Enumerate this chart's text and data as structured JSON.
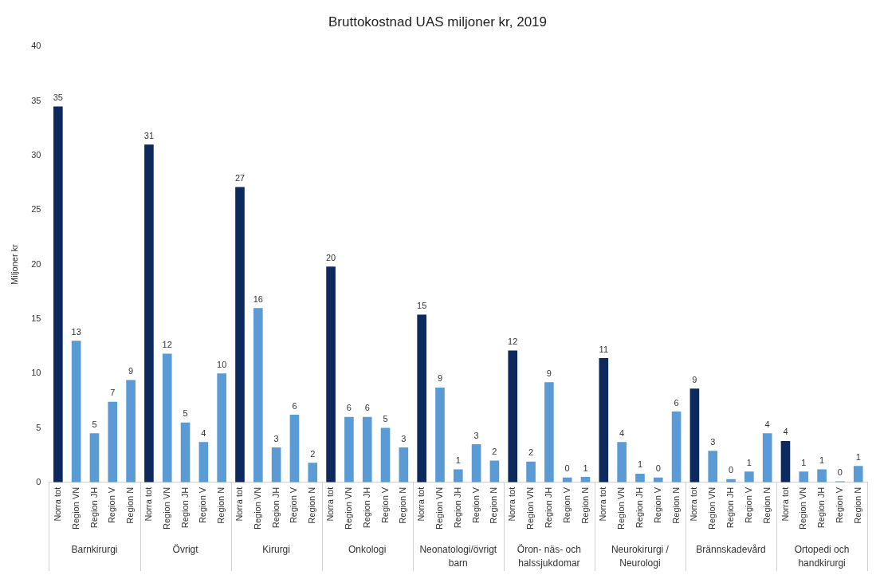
{
  "chart_data": {
    "type": "bar",
    "title": "Bruttokostnad UAS miljoner kr, 2019",
    "ylabel": "Miljoner kr",
    "categories": [
      "Norra tot",
      "Region VN",
      "Region JH",
      "Region V",
      "Region N",
      "Norra tot",
      "Region VN",
      "Region JH",
      "Region V",
      "Region N",
      "Norra tot",
      "Region VN",
      "Region JH",
      "Region V",
      "Region N",
      "Norra tot",
      "Region VN",
      "Region JH",
      "Region V",
      "Region N",
      "Norra tot",
      "Region VN",
      "Region JH",
      "Region V",
      "Region N",
      "Norra tot",
      "Region VN",
      "Region JH",
      "Region V",
      "Region N",
      "Norra tot",
      "Region VN",
      "Region JH",
      "Region V",
      "Region N",
      "Norra tot",
      "Region VN",
      "Region JH",
      "Region V",
      "Region N",
      "Norra tot",
      "Region VN",
      "Region JH",
      "Region V",
      "Region N"
    ],
    "values": [
      34.5,
      13.0,
      4.5,
      7.4,
      9.4,
      31.0,
      11.8,
      5.5,
      3.7,
      10.0,
      27.1,
      16.0,
      3.2,
      6.2,
      1.8,
      19.8,
      6.0,
      6.0,
      5.0,
      3.2,
      15.4,
      8.7,
      1.2,
      3.5,
      2.0,
      12.1,
      1.9,
      9.2,
      0.45,
      0.5,
      11.4,
      3.7,
      0.8,
      0.45,
      6.5,
      8.6,
      2.9,
      0.3,
      1.0,
      4.5,
      3.8,
      1.0,
      1.2,
      0.1,
      1.5
    ],
    "value_labels": [
      "35",
      "13",
      "5",
      "7",
      "9",
      "31",
      "12",
      "5",
      "4",
      "10",
      "27",
      "16",
      "3",
      "6",
      "2",
      "20",
      "6",
      "6",
      "5",
      "3",
      "15",
      "9",
      "1",
      "3",
      "2",
      "12",
      "2",
      "9",
      "0",
      "1",
      "11",
      "4",
      "1",
      "0",
      "6",
      "9",
      "3",
      "0",
      "1",
      "4",
      "4",
      "1",
      "1",
      "0",
      "1"
    ],
    "colors": [
      "#0d2a5e",
      "#5b9bd5",
      "#5b9bd5",
      "#5b9bd5",
      "#5b9bd5",
      "#0d2a5e",
      "#5b9bd5",
      "#5b9bd5",
      "#5b9bd5",
      "#5b9bd5",
      "#0d2a5e",
      "#5b9bd5",
      "#5b9bd5",
      "#5b9bd5",
      "#5b9bd5",
      "#0d2a5e",
      "#5b9bd5",
      "#5b9bd5",
      "#5b9bd5",
      "#5b9bd5",
      "#0d2a5e",
      "#5b9bd5",
      "#5b9bd5",
      "#5b9bd5",
      "#5b9bd5",
      "#0d2a5e",
      "#5b9bd5",
      "#5b9bd5",
      "#5b9bd5",
      "#5b9bd5",
      "#0d2a5e",
      "#5b9bd5",
      "#5b9bd5",
      "#5b9bd5",
      "#5b9bd5",
      "#0d2a5e",
      "#5b9bd5",
      "#5b9bd5",
      "#5b9bd5",
      "#5b9bd5",
      "#0d2a5e",
      "#5b9bd5",
      "#5b9bd5",
      "#5b9bd5",
      "#5b9bd5"
    ],
    "annotations": [
      "Barnkirurgi",
      "Övrigt",
      "Kirurgi",
      "Onkologi",
      "Neonatologi/övrigt barn",
      "Öron- näs- och halssjukdomar",
      "Neurokirurgi / Neurologi",
      "Brännskadevård",
      "Ortopedi och handkirurgi"
    ],
    "ylim": [
      0,
      40
    ],
    "yticks": [
      0,
      5,
      10,
      15,
      20,
      25,
      30,
      35,
      40
    ],
    "grid": false,
    "legend": false
  }
}
